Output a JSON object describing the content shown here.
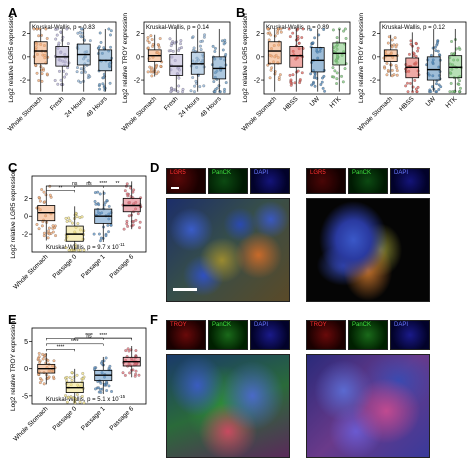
{
  "labels": {
    "A": "A",
    "B": "B",
    "C": "C",
    "D": "D",
    "E": "E",
    "F": "F"
  },
  "colors": {
    "whole_stomach": "#f2a873",
    "fresh": "#b6b1d6",
    "hours24": "#8db2d6",
    "hours48": "#6a9bc4",
    "hbss": "#e2645d",
    "uw": "#4e86b8",
    "htk": "#7cc77a",
    "passage0": "#f0e085",
    "passage1": "#5f93c4",
    "passage6": "#e0707a"
  },
  "chart_data": [
    {
      "id": "A-left",
      "type": "box",
      "annotation": "Kruskal-Wallis, p = 0.83",
      "ylabel": "Log2 relative LGR5 expression",
      "categories": [
        "Whole Stomach",
        "Fresh",
        "24 Hours",
        "48 Hours"
      ],
      "yticks": [
        "-2",
        "0",
        "2"
      ],
      "ylim": [
        -3.2,
        3.0
      ],
      "medians": [
        0.5,
        0.0,
        0.2,
        -0.3
      ],
      "q1": [
        -0.6,
        -0.8,
        -0.7,
        -1.2
      ],
      "q3": [
        1.3,
        0.9,
        1.1,
        0.6
      ]
    },
    {
      "id": "A-right",
      "type": "box",
      "annotation": "Kruskal-Wallis, p = 0.14",
      "ylabel": "Log2 relative TROY expression",
      "categories": [
        "Whole Stomach",
        "Fresh",
        "24 Hours",
        "48 Hours"
      ],
      "yticks": [
        "-2",
        "0",
        "2"
      ],
      "ylim": [
        -3.2,
        3.0
      ],
      "medians": [
        0.1,
        -0.8,
        -0.6,
        -1.0
      ],
      "q1": [
        -0.4,
        -1.6,
        -1.5,
        -1.9
      ],
      "q3": [
        0.6,
        0.2,
        0.4,
        0.0
      ]
    },
    {
      "id": "B-left",
      "type": "box",
      "annotation": "Kruskal-Wallis, p = 0.89",
      "ylabel": "Log2 relative LGR5 expression",
      "categories": [
        "Whole Stomach",
        "HBSS",
        "UW",
        "HTK"
      ],
      "yticks": [
        "-2",
        "0",
        "2"
      ],
      "ylim": [
        -3.2,
        3.0
      ],
      "medians": [
        0.5,
        0.1,
        -0.3,
        0.3
      ],
      "q1": [
        -0.6,
        -0.9,
        -1.3,
        -0.7
      ],
      "q3": [
        1.3,
        0.9,
        0.8,
        1.2
      ]
    },
    {
      "id": "B-right",
      "type": "box",
      "annotation": "Kruskal-Wallis, p = 0.12",
      "ylabel": "Log2 relative TROY expression",
      "categories": [
        "Whole Stomach",
        "HBSS",
        "UW",
        "HTK"
      ],
      "yticks": [
        "-2",
        "0",
        "2"
      ],
      "ylim": [
        -3.2,
        3.0
      ],
      "medians": [
        0.1,
        -0.9,
        -1.1,
        -0.9
      ],
      "q1": [
        -0.4,
        -1.8,
        -2.0,
        -1.8
      ],
      "q3": [
        0.6,
        -0.1,
        0.0,
        0.1
      ]
    },
    {
      "id": "C",
      "type": "box",
      "annotation": "Kruskal-Wallis, p = 9.7 x 10",
      "annotation_exp": "-11",
      "ylabel": "Log2 relative LGR5 expression",
      "categories": [
        "Whole Stomach",
        "Passage 0",
        "Passage 1",
        "Passage 6"
      ],
      "yticks": [
        "-2",
        "0",
        "2"
      ],
      "ylim": [
        -4.0,
        4.5
      ],
      "medians": [
        0.4,
        -2.0,
        0.0,
        1.2
      ],
      "q1": [
        -0.5,
        -2.8,
        -0.8,
        0.5
      ],
      "q3": [
        1.2,
        -1.1,
        0.8,
        2.0
      ],
      "significance": [
        "**",
        "ns",
        "ns",
        "*",
        "****",
        "**"
      ]
    },
    {
      "id": "E",
      "type": "box",
      "annotation": "Kruskal-Wallis, p = 5.1 x 10",
      "annotation_exp": "-15",
      "ylabel": "Log2 relative TROY expression",
      "categories": [
        "Whole Stomach",
        "Passage 0",
        "Passage 1",
        "Passage 6"
      ],
      "yticks": [
        "-5",
        "0",
        "5"
      ],
      "ylim": [
        -6.5,
        7.5
      ],
      "medians": [
        0.0,
        -3.5,
        -1.2,
        1.3
      ],
      "q1": [
        -0.8,
        -4.4,
        -2.2,
        0.5
      ],
      "q3": [
        0.8,
        -2.5,
        -0.3,
        2.1
      ],
      "significance": [
        "****",
        "****",
        "ns",
        "****",
        "****"
      ]
    }
  ],
  "micrographs": {
    "D_left_channels": [
      "LGR5",
      "PanCK",
      "DAPI"
    ],
    "D_right_channels": [
      "LGR5",
      "PanCK",
      "DAPI"
    ],
    "F_left_channels": [
      "TROY",
      "PanCK",
      "DAPI"
    ],
    "F_right_channels": [
      "TROY",
      "PanCK",
      "DAPI"
    ]
  }
}
